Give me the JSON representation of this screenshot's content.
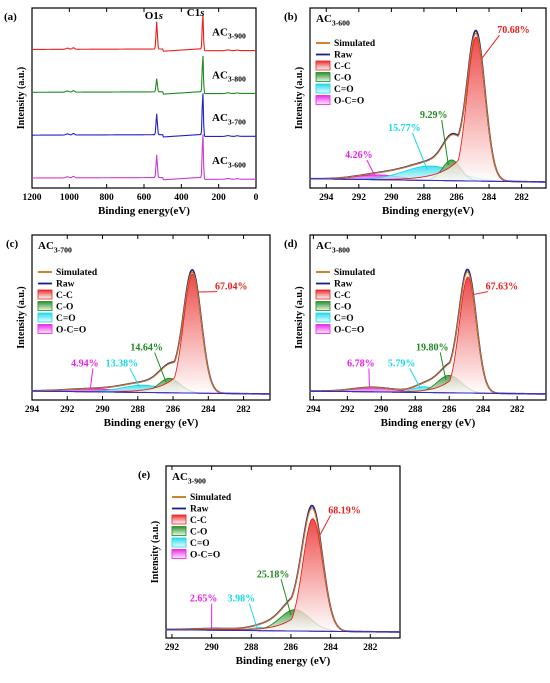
{
  "chart_data": [
    {
      "id": "a",
      "panel_label": "(a)",
      "type": "line",
      "xlabel": "Binding energy(eV)",
      "ylabel": "Intensity (a.u.)",
      "xlim": [
        1200,
        0
      ],
      "xticks": [
        1200,
        1000,
        800,
        600,
        400,
        200,
        0
      ],
      "peak_labels": [
        {
          "text": "O1s",
          "x": 532
        },
        {
          "text": "C1s",
          "x": 285
        }
      ],
      "series": [
        {
          "name": "AC3-900",
          "label_main": "AC",
          "label_sub": "3-900",
          "color": "#e8201e",
          "offset": 3,
          "o_peak": 0.72,
          "c_peak": 1.0
        },
        {
          "name": "AC3-800",
          "label_main": "AC",
          "label_sub": "3-800",
          "color": "#1f8a1f",
          "offset": 2,
          "o_peak": 0.35,
          "c_peak": 1.05
        },
        {
          "name": "AC3-700",
          "label_main": "AC",
          "label_sub": "3-700",
          "color": "#2020c8",
          "offset": 1,
          "o_peak": 0.55,
          "c_peak": 1.2
        },
        {
          "name": "AC3-600",
          "label_main": "AC",
          "label_sub": "3-600",
          "color": "#c83cd2",
          "offset": 0,
          "o_peak": 0.6,
          "c_peak": 1.25
        }
      ]
    },
    {
      "id": "b",
      "panel_label": "(b)",
      "type": "area",
      "title_main": "AC",
      "title_sub": "3-600",
      "xlabel": "Binding energy(eV)",
      "ylabel": "Intensity (a.u.)",
      "xlim": [
        295,
        280.5
      ],
      "xticks": [
        294,
        292,
        290,
        288,
        286,
        284,
        282
      ],
      "ymax": 1.0,
      "components": [
        {
          "name": "C-C",
          "center": 284.8,
          "height": 0.9,
          "sigma": 0.55,
          "tail": 0.55,
          "percent": "70.68%",
          "label_x": 282.5,
          "label_y": 0.93
        },
        {
          "name": "C-O",
          "center": 286.3,
          "height": 0.13,
          "sigma": 0.55,
          "tail": 0.0,
          "percent": "9.29%",
          "label_x": 287.4,
          "label_y": 0.4
        },
        {
          "name": "C=O",
          "center": 287.6,
          "height": 0.09,
          "sigma": 1.6,
          "tail": 0.0,
          "percent": "15.77%",
          "label_x": 289.2,
          "label_y": 0.32
        },
        {
          "name": "O-C=O",
          "center": 290.8,
          "height": 0.03,
          "sigma": 1.4,
          "tail": 0.0,
          "percent": "4.26%",
          "label_x": 292.0,
          "label_y": 0.15
        }
      ],
      "percent_colors": [
        "#e8201e",
        "#1f8a1f",
        "#17d8e8",
        "#e620e6"
      ],
      "baseline": [
        0.02,
        0.0
      ],
      "legend": [
        "Simulated",
        "Raw",
        "C-C",
        "C-O",
        "C=O",
        "O-C=O"
      ]
    },
    {
      "id": "c",
      "panel_label": "(c)",
      "type": "area",
      "title_main": "AC",
      "title_sub": "3-700",
      "xlabel": "Binding energy (eV)",
      "ylabel": "Intensity (a.u.)",
      "xlim": [
        294,
        280.5
      ],
      "xticks": [
        294,
        292,
        290,
        288,
        286,
        284,
        282
      ],
      "ymax": 1.0,
      "components": [
        {
          "name": "C-C",
          "center": 284.9,
          "height": 0.82,
          "sigma": 0.5,
          "tail": 0.45,
          "percent": "67.04%",
          "label_x": 282.7,
          "label_y": 0.72
        },
        {
          "name": "C-O",
          "center": 286.2,
          "height": 0.1,
          "sigma": 0.6,
          "tail": 0.0,
          "percent": "14.64%",
          "label_x": 287.5,
          "label_y": 0.3
        },
        {
          "name": "C=O",
          "center": 287.7,
          "height": 0.05,
          "sigma": 1.2,
          "tail": 0.0,
          "percent": "13.38%",
          "label_x": 288.9,
          "label_y": 0.19
        },
        {
          "name": "O-C=O",
          "center": 290.5,
          "height": 0.02,
          "sigma": 1.6,
          "tail": 0.0,
          "percent": "4.94%",
          "label_x": 291.0,
          "label_y": 0.19
        }
      ],
      "percent_colors": [
        "#e8201e",
        "#1f8a1f",
        "#17d8e8",
        "#e620e6"
      ],
      "baseline": [
        0.02,
        0.0
      ],
      "legend": [
        "Simulated",
        "Raw",
        "C-C",
        "C-O",
        "C=O",
        "O-C=O"
      ]
    },
    {
      "id": "d",
      "panel_label": "(d)",
      "type": "area",
      "title_main": "AC",
      "title_sub": "3-800",
      "xlabel": "Binding energy (eV)",
      "ylabel": "Intensity (a.u.)",
      "xlim": [
        294.2,
        280.3
      ],
      "xticks": [
        294,
        292,
        290,
        288,
        286,
        284,
        282
      ],
      "ymax": 1.0,
      "components": [
        {
          "name": "C-C",
          "center": 284.9,
          "height": 0.8,
          "sigma": 0.5,
          "tail": 0.4,
          "percent": "67.63%",
          "label_x": 282.9,
          "label_y": 0.72
        },
        {
          "name": "C-O",
          "center": 286.0,
          "height": 0.12,
          "sigma": 0.7,
          "tail": 0.0,
          "percent": "19.80%",
          "label_x": 287.0,
          "label_y": 0.3
        },
        {
          "name": "C=O",
          "center": 287.5,
          "height": 0.04,
          "sigma": 0.6,
          "tail": 0.0,
          "percent": "5.79%",
          "label_x": 288.8,
          "label_y": 0.19
        },
        {
          "name": "O-C=O",
          "center": 290.5,
          "height": 0.03,
          "sigma": 1.2,
          "tail": 0.0,
          "percent": "6.78%",
          "label_x": 291.2,
          "label_y": 0.19
        }
      ],
      "percent_colors": [
        "#e8201e",
        "#1f8a1f",
        "#17d8e8",
        "#e620e6"
      ],
      "baseline": [
        0.02,
        0.0
      ],
      "legend": [
        "Simulated",
        "Raw",
        "C-C",
        "C-O",
        "C=O",
        "O-C=O"
      ]
    },
    {
      "id": "e",
      "panel_label": "(e)",
      "type": "area",
      "title_main": "AC",
      "title_sub": "3-900",
      "xlabel": "Binding energy (eV)",
      "ylabel": "Intensity (a.u.)",
      "xlim": [
        292.3,
        280.5
      ],
      "xticks": [
        292,
        290,
        288,
        286,
        284,
        282
      ],
      "ymax": 1.0,
      "components": [
        {
          "name": "C-C",
          "center": 284.9,
          "height": 0.74,
          "sigma": 0.5,
          "tail": 0.4,
          "percent": "68.19%",
          "label_x": 283.3,
          "label_y": 0.78
        },
        {
          "name": "C-O",
          "center": 285.8,
          "height": 0.14,
          "sigma": 0.75,
          "tail": 0.0,
          "percent": "25.18%",
          "label_x": 286.9,
          "label_y": 0.36
        },
        {
          "name": "C=O",
          "center": 287.5,
          "height": 0.02,
          "sigma": 0.6,
          "tail": 0.0,
          "percent": "3.98%",
          "label_x": 288.5,
          "label_y": 0.2
        },
        {
          "name": "O-C=O",
          "center": 289.8,
          "height": 0.01,
          "sigma": 1.2,
          "tail": 0.0,
          "percent": "2.65%",
          "label_x": 290.4,
          "label_y": 0.2
        }
      ],
      "percent_colors": [
        "#e8201e",
        "#1f8a1f",
        "#17d8e8",
        "#e620e6"
      ],
      "baseline": [
        0.015,
        0.0
      ],
      "legend": [
        "Simulated",
        "Raw",
        "C-C",
        "C-O",
        "C=O",
        "O-C=O"
      ]
    }
  ],
  "colors": {
    "simulated": "#c8741e",
    "raw": "#1c1c8c",
    "C-C": "#e8201e",
    "C-O": "#1f8a1f",
    "C=O": "#17d8e8",
    "O-C=O": "#e620e6",
    "axis": "#000000"
  }
}
